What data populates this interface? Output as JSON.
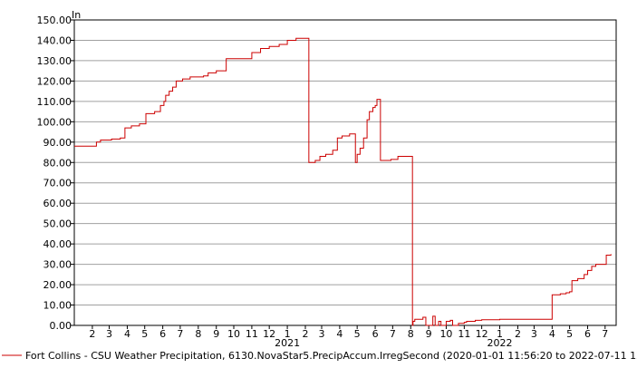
{
  "chart_data": {
    "type": "line",
    "title": "",
    "ylabel": "In",
    "xlabel": "",
    "ylim": [
      0,
      150
    ],
    "yticks": [
      "0.00",
      "10.00",
      "20.00",
      "30.00",
      "40.00",
      "50.00",
      "60.00",
      "70.00",
      "80.00",
      "90.00",
      "100.00",
      "110.00",
      "120.00",
      "130.00",
      "140.00",
      "150.00"
    ],
    "xlim": [
      "2020-01-01",
      "2022-07-20"
    ],
    "month_tick_labels": [
      {
        "date": "2020-02-01",
        "label": "2"
      },
      {
        "date": "2020-03-01",
        "label": "3"
      },
      {
        "date": "2020-04-01",
        "label": "4"
      },
      {
        "date": "2020-05-01",
        "label": "5"
      },
      {
        "date": "2020-06-01",
        "label": "6"
      },
      {
        "date": "2020-07-01",
        "label": "7"
      },
      {
        "date": "2020-08-01",
        "label": "8"
      },
      {
        "date": "2020-09-01",
        "label": "9"
      },
      {
        "date": "2020-10-01",
        "label": "10"
      },
      {
        "date": "2020-11-01",
        "label": "11"
      },
      {
        "date": "2020-12-01",
        "label": "12"
      },
      {
        "date": "2021-01-01",
        "label": "1"
      },
      {
        "date": "2021-02-01",
        "label": "2"
      },
      {
        "date": "2021-03-01",
        "label": "3"
      },
      {
        "date": "2021-04-01",
        "label": "4"
      },
      {
        "date": "2021-05-01",
        "label": "5"
      },
      {
        "date": "2021-06-01",
        "label": "6"
      },
      {
        "date": "2021-07-01",
        "label": "7"
      },
      {
        "date": "2021-08-01",
        "label": "8"
      },
      {
        "date": "2021-09-01",
        "label": "9"
      },
      {
        "date": "2021-10-01",
        "label": "10"
      },
      {
        "date": "2021-11-01",
        "label": "11"
      },
      {
        "date": "2021-12-01",
        "label": "12"
      },
      {
        "date": "2022-01-01",
        "label": "1"
      },
      {
        "date": "2022-02-01",
        "label": "2"
      },
      {
        "date": "2022-03-01",
        "label": "3"
      },
      {
        "date": "2022-04-01",
        "label": "4"
      },
      {
        "date": "2022-05-01",
        "label": "5"
      },
      {
        "date": "2022-06-01",
        "label": "6"
      },
      {
        "date": "2022-07-01",
        "label": "7"
      }
    ],
    "year_labels": [
      {
        "date": "2021-01-01",
        "label": "2021"
      },
      {
        "date": "2022-01-01",
        "label": "2022"
      }
    ],
    "grid": true,
    "grid_axis": "y",
    "legend_position": "bottom-left",
    "series": [
      {
        "name": "Fort Collins - CSU Weather Precipitation, 6130.NovaStar5.PrecipAccum.IrregSecond (2020-01-01 11:56:20 to 2022-07-11 12:59:47)",
        "color": "#cc0000",
        "step": true,
        "points": [
          [
            "2020-01-01",
            88
          ],
          [
            "2020-02-01",
            88
          ],
          [
            "2020-02-08",
            90
          ],
          [
            "2020-02-15",
            91
          ],
          [
            "2020-03-05",
            91.5
          ],
          [
            "2020-03-20",
            92
          ],
          [
            "2020-03-28",
            97
          ],
          [
            "2020-04-08",
            98
          ],
          [
            "2020-04-22",
            99
          ],
          [
            "2020-05-03",
            104
          ],
          [
            "2020-05-18",
            105
          ],
          [
            "2020-05-28",
            108
          ],
          [
            "2020-06-03",
            110
          ],
          [
            "2020-06-06",
            113
          ],
          [
            "2020-06-12",
            115
          ],
          [
            "2020-06-18",
            117
          ],
          [
            "2020-06-24",
            120
          ],
          [
            "2020-07-05",
            121
          ],
          [
            "2020-07-18",
            122
          ],
          [
            "2020-08-10",
            122.5
          ],
          [
            "2020-08-18",
            124
          ],
          [
            "2020-09-01",
            125
          ],
          [
            "2020-09-18",
            131
          ],
          [
            "2020-11-01",
            134
          ],
          [
            "2020-11-16",
            136
          ],
          [
            "2020-12-01",
            137
          ],
          [
            "2020-12-18",
            138
          ],
          [
            "2021-01-01",
            140
          ],
          [
            "2021-01-16",
            141
          ],
          [
            "2021-02-01",
            141
          ],
          [
            "2021-02-07",
            80
          ],
          [
            "2021-02-18",
            81
          ],
          [
            "2021-02-26",
            83
          ],
          [
            "2021-03-08",
            84
          ],
          [
            "2021-03-20",
            86
          ],
          [
            "2021-03-28",
            92
          ],
          [
            "2021-04-05",
            93
          ],
          [
            "2021-04-18",
            94
          ],
          [
            "2021-04-28",
            80
          ],
          [
            "2021-05-01",
            84
          ],
          [
            "2021-05-06",
            87
          ],
          [
            "2021-05-12",
            92
          ],
          [
            "2021-05-18",
            101
          ],
          [
            "2021-05-22",
            105
          ],
          [
            "2021-05-28",
            107
          ],
          [
            "2021-06-01",
            108
          ],
          [
            "2021-06-04",
            111
          ],
          [
            "2021-06-10",
            81
          ],
          [
            "2021-06-28",
            81.5
          ],
          [
            "2021-07-10",
            83
          ],
          [
            "2021-07-31",
            83
          ],
          [
            "2021-08-04",
            0
          ],
          [
            "2021-08-05",
            2
          ],
          [
            "2021-08-08",
            3
          ],
          [
            "2021-08-22",
            4
          ],
          [
            "2021-08-27",
            0
          ],
          [
            "2021-09-05",
            0
          ],
          [
            "2021-09-08",
            4.5
          ],
          [
            "2021-09-12",
            0
          ],
          [
            "2021-09-18",
            2
          ],
          [
            "2021-09-22",
            0
          ],
          [
            "2021-10-01",
            2
          ],
          [
            "2021-10-08",
            2.5
          ],
          [
            "2021-10-12",
            0
          ],
          [
            "2021-10-18",
            0
          ],
          [
            "2021-10-22",
            1
          ],
          [
            "2021-11-01",
            1.5
          ],
          [
            "2021-11-05",
            2
          ],
          [
            "2021-11-20",
            2.5
          ],
          [
            "2021-12-01",
            2.8
          ],
          [
            "2022-01-01",
            3
          ],
          [
            "2022-04-01",
            15
          ],
          [
            "2022-04-15",
            15.5
          ],
          [
            "2022-04-25",
            16
          ],
          [
            "2022-05-01",
            16.5
          ],
          [
            "2022-05-05",
            22
          ],
          [
            "2022-05-15",
            23
          ],
          [
            "2022-05-26",
            25
          ],
          [
            "2022-06-01",
            27
          ],
          [
            "2022-06-08",
            29
          ],
          [
            "2022-06-15",
            30
          ],
          [
            "2022-07-01",
            30
          ],
          [
            "2022-07-03",
            34.5
          ],
          [
            "2022-07-11",
            35
          ]
        ]
      }
    ]
  }
}
